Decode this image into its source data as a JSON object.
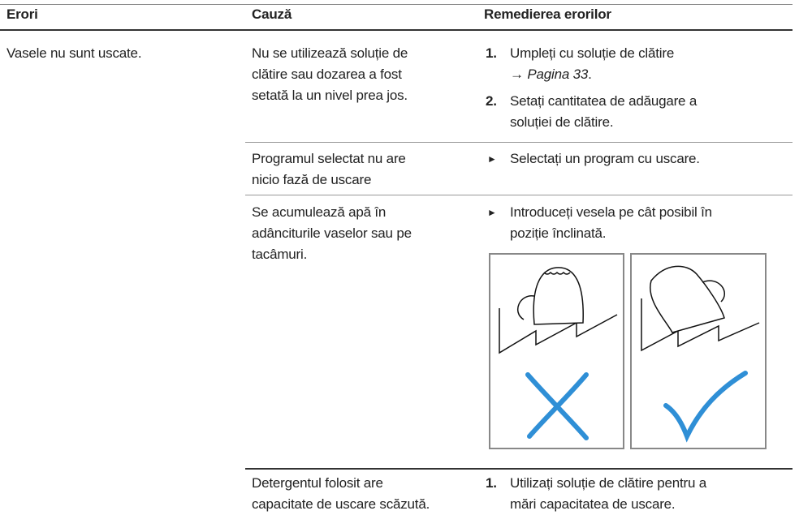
{
  "table": {
    "headers": [
      "Erori",
      "Cauză",
      "Remedierea erorilor"
    ],
    "rows": [
      {
        "error": "Vasele nu sunt uscate.",
        "causes": [
          {
            "cause_lines": [
              "Nu se utilizează soluție de",
              "clătire sau dozarea a fost",
              "setată la un nivel prea jos."
            ],
            "steps": [
              {
                "marker": "1.",
                "lines": [
                  "Umpleți cu soluție de clătire"
                ],
                "ref": {
                  "arrow": "→",
                  "page": "Pagina 33",
                  "end": "."
                }
              },
              {
                "marker": "2.",
                "lines": [
                  "Setați cantitatea de adăugare a",
                  "soluției de clătire."
                ]
              }
            ]
          },
          {
            "cause_lines": [
              "Programul selectat nu are",
              "nicio fază de uscare"
            ],
            "steps": [
              {
                "marker": "►",
                "lines": [
                  "Selectați un program cu uscare."
                ]
              }
            ]
          },
          {
            "cause_lines": [
              "Se acumulează apă în",
              "adânciturile vaselor sau pe",
              "tacâmuri."
            ],
            "steps": [
              {
                "marker": "►",
                "lines": [
                  "Introduceți vesela pe cât posibil în",
                  "poziție înclinată."
                ]
              }
            ]
          },
          {
            "cause_lines": [
              "Detergentul folosit are",
              "capacitate de uscare scăzută."
            ],
            "steps": [
              {
                "marker": "1.",
                "lines": [
                  "Utilizați soluție de clătire pentru a",
                  "mări capacitatea de uscare."
                ]
              }
            ]
          }
        ]
      }
    ]
  }
}
